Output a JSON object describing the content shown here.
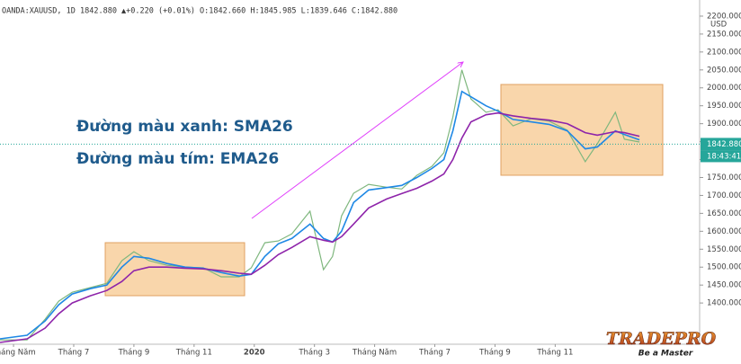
{
  "header": "OANDA:XAUUSD, 1D 1842.880 ▲+0.220 (+0.01%) O:1842.660 H:1845.985 L:1839.646 C:1842.880",
  "chart_data": {
    "type": "line",
    "annotations": [
      "Đường màu xanh: SMA26",
      "Đường màu tím: EMA26"
    ],
    "y_unit": "USD",
    "last_value": {
      "value": 1842.88,
      "label": "1842.880"
    },
    "last_time": "18:43:41",
    "x": [
      -0.45,
      0.45,
      1.05,
      1.5,
      1.95,
      2.55,
      3.1,
      3.6,
      4.0,
      4.5,
      5.1,
      5.7,
      6.3,
      6.9,
      7.5,
      7.9,
      8.35,
      8.8,
      9.25,
      9.85,
      10.3,
      10.6,
      10.9,
      11.3,
      11.8,
      12.4,
      12.9,
      13.4,
      13.9,
      14.3,
      14.6,
      14.9,
      15.2,
      15.7,
      16.1,
      16.6,
      17.2,
      17.8,
      18.4,
      19.0,
      19.4,
      20.0,
      20.3,
      20.8
    ],
    "series": [
      {
        "name": "XAUUSD",
        "color": "#7fb77e",
        "values": [
          1297,
          1297,
          1355,
          1405,
          1430,
          1443,
          1455,
          1518,
          1543,
          1518,
          1505,
          1500,
          1498,
          1473,
          1473,
          1498,
          1568,
          1573,
          1593,
          1656,
          1493,
          1530,
          1643,
          1706,
          1731,
          1723,
          1718,
          1756,
          1781,
          1819,
          1919,
          2050,
          1969,
          1932,
          1939,
          1894,
          1914,
          1907,
          1882,
          1794,
          1844,
          1932,
          1857,
          1849
        ]
      },
      {
        "name": "SMA26",
        "color": "#1e88e5",
        "values": [
          1300,
          1310,
          1350,
          1395,
          1425,
          1440,
          1450,
          1500,
          1530,
          1525,
          1510,
          1500,
          1497,
          1485,
          1475,
          1480,
          1530,
          1565,
          1580,
          1620,
          1580,
          1570,
          1600,
          1680,
          1715,
          1722,
          1728,
          1750,
          1775,
          1800,
          1880,
          1990,
          1975,
          1950,
          1935,
          1912,
          1905,
          1898,
          1880,
          1830,
          1835,
          1880,
          1870,
          1855
        ]
      },
      {
        "name": "EMA26",
        "color": "#8e24aa",
        "values": [
          1290,
          1300,
          1330,
          1370,
          1400,
          1420,
          1435,
          1460,
          1490,
          1500,
          1500,
          1497,
          1495,
          1490,
          1483,
          1480,
          1505,
          1535,
          1555,
          1585,
          1575,
          1570,
          1585,
          1620,
          1665,
          1690,
          1705,
          1720,
          1740,
          1760,
          1800,
          1860,
          1905,
          1925,
          1930,
          1922,
          1915,
          1910,
          1900,
          1875,
          1868,
          1878,
          1875,
          1865
        ]
      }
    ],
    "xlim": [
      -0.45,
      22.8
    ],
    "xticks": [
      {
        "value": 0,
        "label": "Tháng Năm"
      },
      {
        "value": 2,
        "label": "Tháng 7"
      },
      {
        "value": 4,
        "label": "Tháng 9"
      },
      {
        "value": 6,
        "label": "Tháng 11"
      },
      {
        "value": 8,
        "label": "2020"
      },
      {
        "value": 10,
        "label": "Tháng 3"
      },
      {
        "value": 12,
        "label": "Tháng Năm"
      },
      {
        "value": 14,
        "label": "Tháng 7"
      },
      {
        "value": 16,
        "label": "Tháng 9"
      },
      {
        "value": 18,
        "label": "Tháng 11"
      }
    ],
    "ylim": [
      1285,
      2245
    ],
    "yticks": [
      {
        "value": 1400,
        "label": "1400.000"
      },
      {
        "value": 1450,
        "label": "1450.000"
      },
      {
        "value": 1500,
        "label": "1500.000"
      },
      {
        "value": 1550,
        "label": "1550.000"
      },
      {
        "value": 1600,
        "label": "1600.000"
      },
      {
        "value": 1650,
        "label": "1650.000"
      },
      {
        "value": 1700,
        "label": "1700.000"
      },
      {
        "value": 1750,
        "label": "1750.000"
      },
      {
        "value": 1800,
        "label": "1800.000"
      },
      {
        "value": 1850,
        "label": "1850.000"
      },
      {
        "value": 1900,
        "label": "1900.000"
      },
      {
        "value": 1950,
        "label": "1950.000"
      },
      {
        "value": 2000,
        "label": "2000.000"
      },
      {
        "value": 2050,
        "label": "2050.000"
      },
      {
        "value": 2100,
        "label": "2100.000"
      },
      {
        "value": 2150,
        "label": "2150.000"
      },
      {
        "value": 2200,
        "label": "2200.000"
      }
    ],
    "logo": {
      "title": "TRADEPRO",
      "slogan": "Be a Master"
    }
  }
}
